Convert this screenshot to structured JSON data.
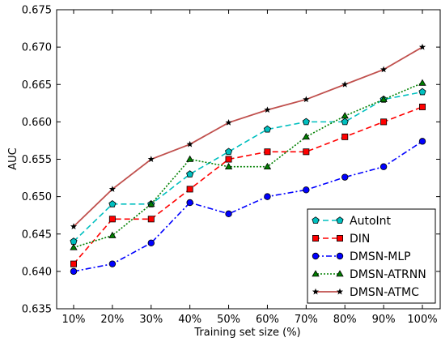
{
  "chart_data": {
    "type": "line",
    "xlabel": "Training set size (%)",
    "ylabel": "AUC",
    "categories": [
      "10%",
      "20%",
      "30%",
      "40%",
      "50%",
      "60%",
      "70%",
      "80%",
      "90%",
      "100%"
    ],
    "ylim": [
      0.635,
      0.675
    ],
    "yticks": [
      "0.635",
      "0.640",
      "0.645",
      "0.650",
      "0.655",
      "0.660",
      "0.665",
      "0.670",
      "0.675"
    ],
    "grid": false,
    "legend_position": "bottom-right",
    "series": [
      {
        "name": "AutoInt",
        "color": "#00bfbf",
        "marker": "pentagon",
        "dash": "dashed",
        "values": [
          0.644,
          0.649,
          0.649,
          0.653,
          0.656,
          0.659,
          0.66,
          0.66,
          0.663,
          0.664
        ]
      },
      {
        "name": "DIN",
        "color": "#ff0000",
        "marker": "square",
        "dash": "dashed",
        "values": [
          0.641,
          0.647,
          0.647,
          0.651,
          0.655,
          0.656,
          0.656,
          0.658,
          0.66,
          0.662
        ]
      },
      {
        "name": "DMSN-MLP",
        "color": "#0000ff",
        "marker": "circle",
        "dash": "dashdot",
        "values": [
          0.64,
          0.641,
          0.6438,
          0.6492,
          0.6477,
          0.65,
          0.6509,
          0.6526,
          0.654,
          0.6574
        ]
      },
      {
        "name": "DMSN-ATRNN",
        "color": "#008000",
        "marker": "triangle",
        "dash": "dotted",
        "values": [
          0.6432,
          0.6448,
          0.649,
          0.655,
          0.654,
          0.654,
          0.658,
          0.6608,
          0.663,
          0.6652
        ]
      },
      {
        "name": "DMSN-ATMC",
        "color": "#c0504d",
        "marker": "star",
        "dash": "solid",
        "values": [
          0.646,
          0.651,
          0.655,
          0.657,
          0.6599,
          0.6616,
          0.663,
          0.665,
          0.667,
          0.67
        ]
      }
    ]
  }
}
